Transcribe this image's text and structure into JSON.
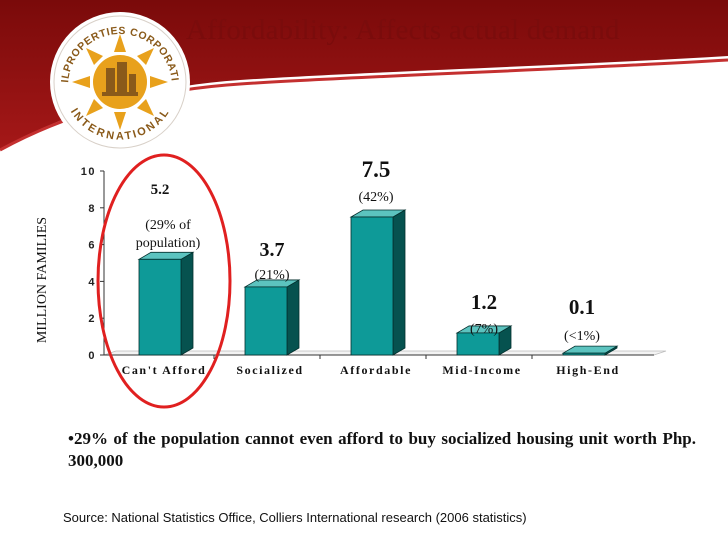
{
  "slide": {
    "title": "Affordability: Affects actual demand",
    "bullet": "•29% of the population cannot even afford to buy socialized housing unit worth Php. 300,000",
    "source": "Source: National Statistics Office, Colliers International research (2006 statistics)"
  },
  "logo": {
    "text_top": "PHILPROPERTIES CORPORATION",
    "text_bottom": "INTERNATIONAL"
  },
  "colors": {
    "banner": "#9b1414",
    "bar_front": "#0e9a98",
    "bar_side": "#06524f",
    "bar_top": "#5cc3bf",
    "highlight_ring": "#e02020",
    "logo_gold": "#e8a11c",
    "logo_brown": "#8a5a1a"
  },
  "chart_data": {
    "type": "bar",
    "categories": [
      "Can't Afford",
      "Socialized",
      "Affordable",
      "Mid-Income",
      "High-End"
    ],
    "values": [
      5.2,
      3.7,
      7.5,
      1.2,
      0.1
    ],
    "value_labels": [
      "5.2",
      "3.7",
      "7.5",
      "1.2",
      "0.1"
    ],
    "percent_labels": [
      "(29% of population)",
      "(21%)",
      "(42%)",
      "(7%)",
      "(<1%)"
    ],
    "ylabel": "MILLION FAMILIES",
    "xlabel": "",
    "ylim": [
      0,
      10
    ],
    "yticks": [
      0,
      2,
      4,
      6,
      8,
      10
    ],
    "highlighted_category": "Can't Afford",
    "grid": false,
    "legend": "none"
  }
}
